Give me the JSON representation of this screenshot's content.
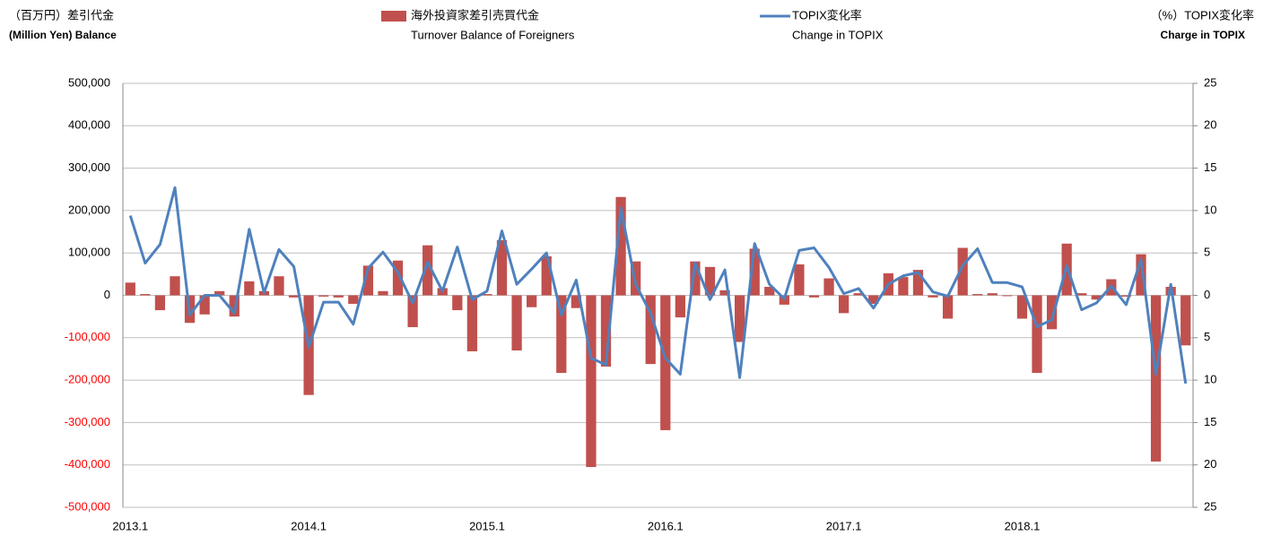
{
  "chart_data": {
    "type": "combo",
    "y_label": "（百万円）差引代金",
    "y_label_en": "(Million Yen) Balance",
    "y2_label": "（%）TOPIX変化率",
    "y2_label_en": "Charge in TOPIX",
    "categories": [
      "2013.1",
      null,
      null,
      null,
      null,
      null,
      null,
      null,
      null,
      null,
      null,
      null,
      "2014.1",
      null,
      null,
      null,
      null,
      null,
      null,
      null,
      null,
      null,
      null,
      null,
      "2015.1",
      null,
      null,
      null,
      null,
      null,
      null,
      null,
      null,
      null,
      null,
      null,
      "2016.1",
      null,
      null,
      null,
      null,
      null,
      null,
      null,
      null,
      null,
      null,
      null,
      "2017.1",
      null,
      null,
      null,
      null,
      null,
      null,
      null,
      null,
      null,
      null,
      null,
      "2018.1",
      null,
      null,
      null,
      null,
      null,
      null,
      null,
      null,
      null,
      null,
      null
    ],
    "series": [
      {
        "type": "bar",
        "name": "海外投資家差引売買代金",
        "name_en": "Turnover Balance of Foreigners",
        "color": "#c0504d",
        "values": [
          30000,
          3000,
          -35000,
          45000,
          -65000,
          -45000,
          10000,
          -50000,
          33000,
          10000,
          45000,
          -5000,
          -235000,
          -3000,
          -5000,
          -20000,
          70000,
          10000,
          82000,
          -75000,
          118000,
          17000,
          -35000,
          -132000,
          3000,
          130000,
          -130000,
          -28000,
          92000,
          -183000,
          -30000,
          -405000,
          -168000,
          232000,
          80000,
          -162000,
          -318000,
          -52000,
          80000,
          67000,
          12000,
          -110000,
          110000,
          20000,
          -22000,
          73000,
          -5000,
          40000,
          -42000,
          5000,
          -20000,
          52000,
          43000,
          60000,
          -5000,
          -55000,
          112000,
          3000,
          5000,
          -2000,
          -55000,
          -183000,
          -80000,
          122000,
          5000,
          -10000,
          38000,
          -3000,
          97000,
          -392000,
          20000,
          -118000
        ]
      },
      {
        "type": "line",
        "name": "TOPIX変化率",
        "name_en": "Change in TOPIX",
        "color": "#4f81bd",
        "axis": "y2",
        "values": [
          9.4,
          3.8,
          6.0,
          12.7,
          -2.3,
          0,
          0,
          -2.1,
          7.8,
          0.3,
          5.4,
          3.4,
          -6.1,
          -0.8,
          -0.8,
          -3.4,
          3.2,
          5.1,
          2.7,
          -0.9,
          3.9,
          0.5,
          5.7,
          -0.5,
          0.5,
          7.6,
          1.3,
          3.1,
          5.0,
          -2.3,
          1.8,
          -7.4,
          -8.2,
          10.3,
          1.3,
          -2.1,
          -7.4,
          -9.3,
          3.8,
          -0.5,
          3.0,
          -9.7,
          6.1,
          1.3,
          -0.4,
          5.3,
          5.6,
          3.3,
          0.2,
          0.8,
          -1.5,
          1.3,
          2.3,
          2.7,
          0.4,
          -0.1,
          3.5,
          5.5,
          1.5,
          1.5,
          1.0,
          -3.7,
          -2.9,
          3.5,
          -1.7,
          -0.9,
          1.1,
          -1.1,
          4.2,
          -9.3,
          1.3,
          -10.4
        ]
      }
    ],
    "ylim": [
      -500000,
      500000
    ],
    "yticks": [
      {
        "value": -500000,
        "label": "-500,000"
      },
      {
        "value": -400000,
        "label": "-400,000"
      },
      {
        "value": -300000,
        "label": "-300,000"
      },
      {
        "value": -200000,
        "label": "-200,000"
      },
      {
        "value": -100000,
        "label": "-100,000"
      },
      0,
      {
        "value": 100000,
        "label": "100,000"
      },
      {
        "value": 200000,
        "label": "200,000"
      },
      {
        "value": 300000,
        "label": "300,000"
      },
      {
        "value": 400000,
        "label": "400,000"
      },
      {
        "value": 500000,
        "label": "500,000"
      }
    ],
    "y2lim": [
      -25,
      25
    ],
    "y2ticks": [
      {
        "value": -25,
        "label": "25"
      },
      {
        "value": -20,
        "label": "20"
      },
      {
        "value": -15,
        "label": "15"
      },
      {
        "value": -10,
        "label": "10"
      },
      {
        "value": -5,
        "label": "5"
      },
      0,
      5,
      10,
      15,
      20,
      25
    ],
    "grid": true,
    "negative_tick_color": "#ff0000"
  }
}
